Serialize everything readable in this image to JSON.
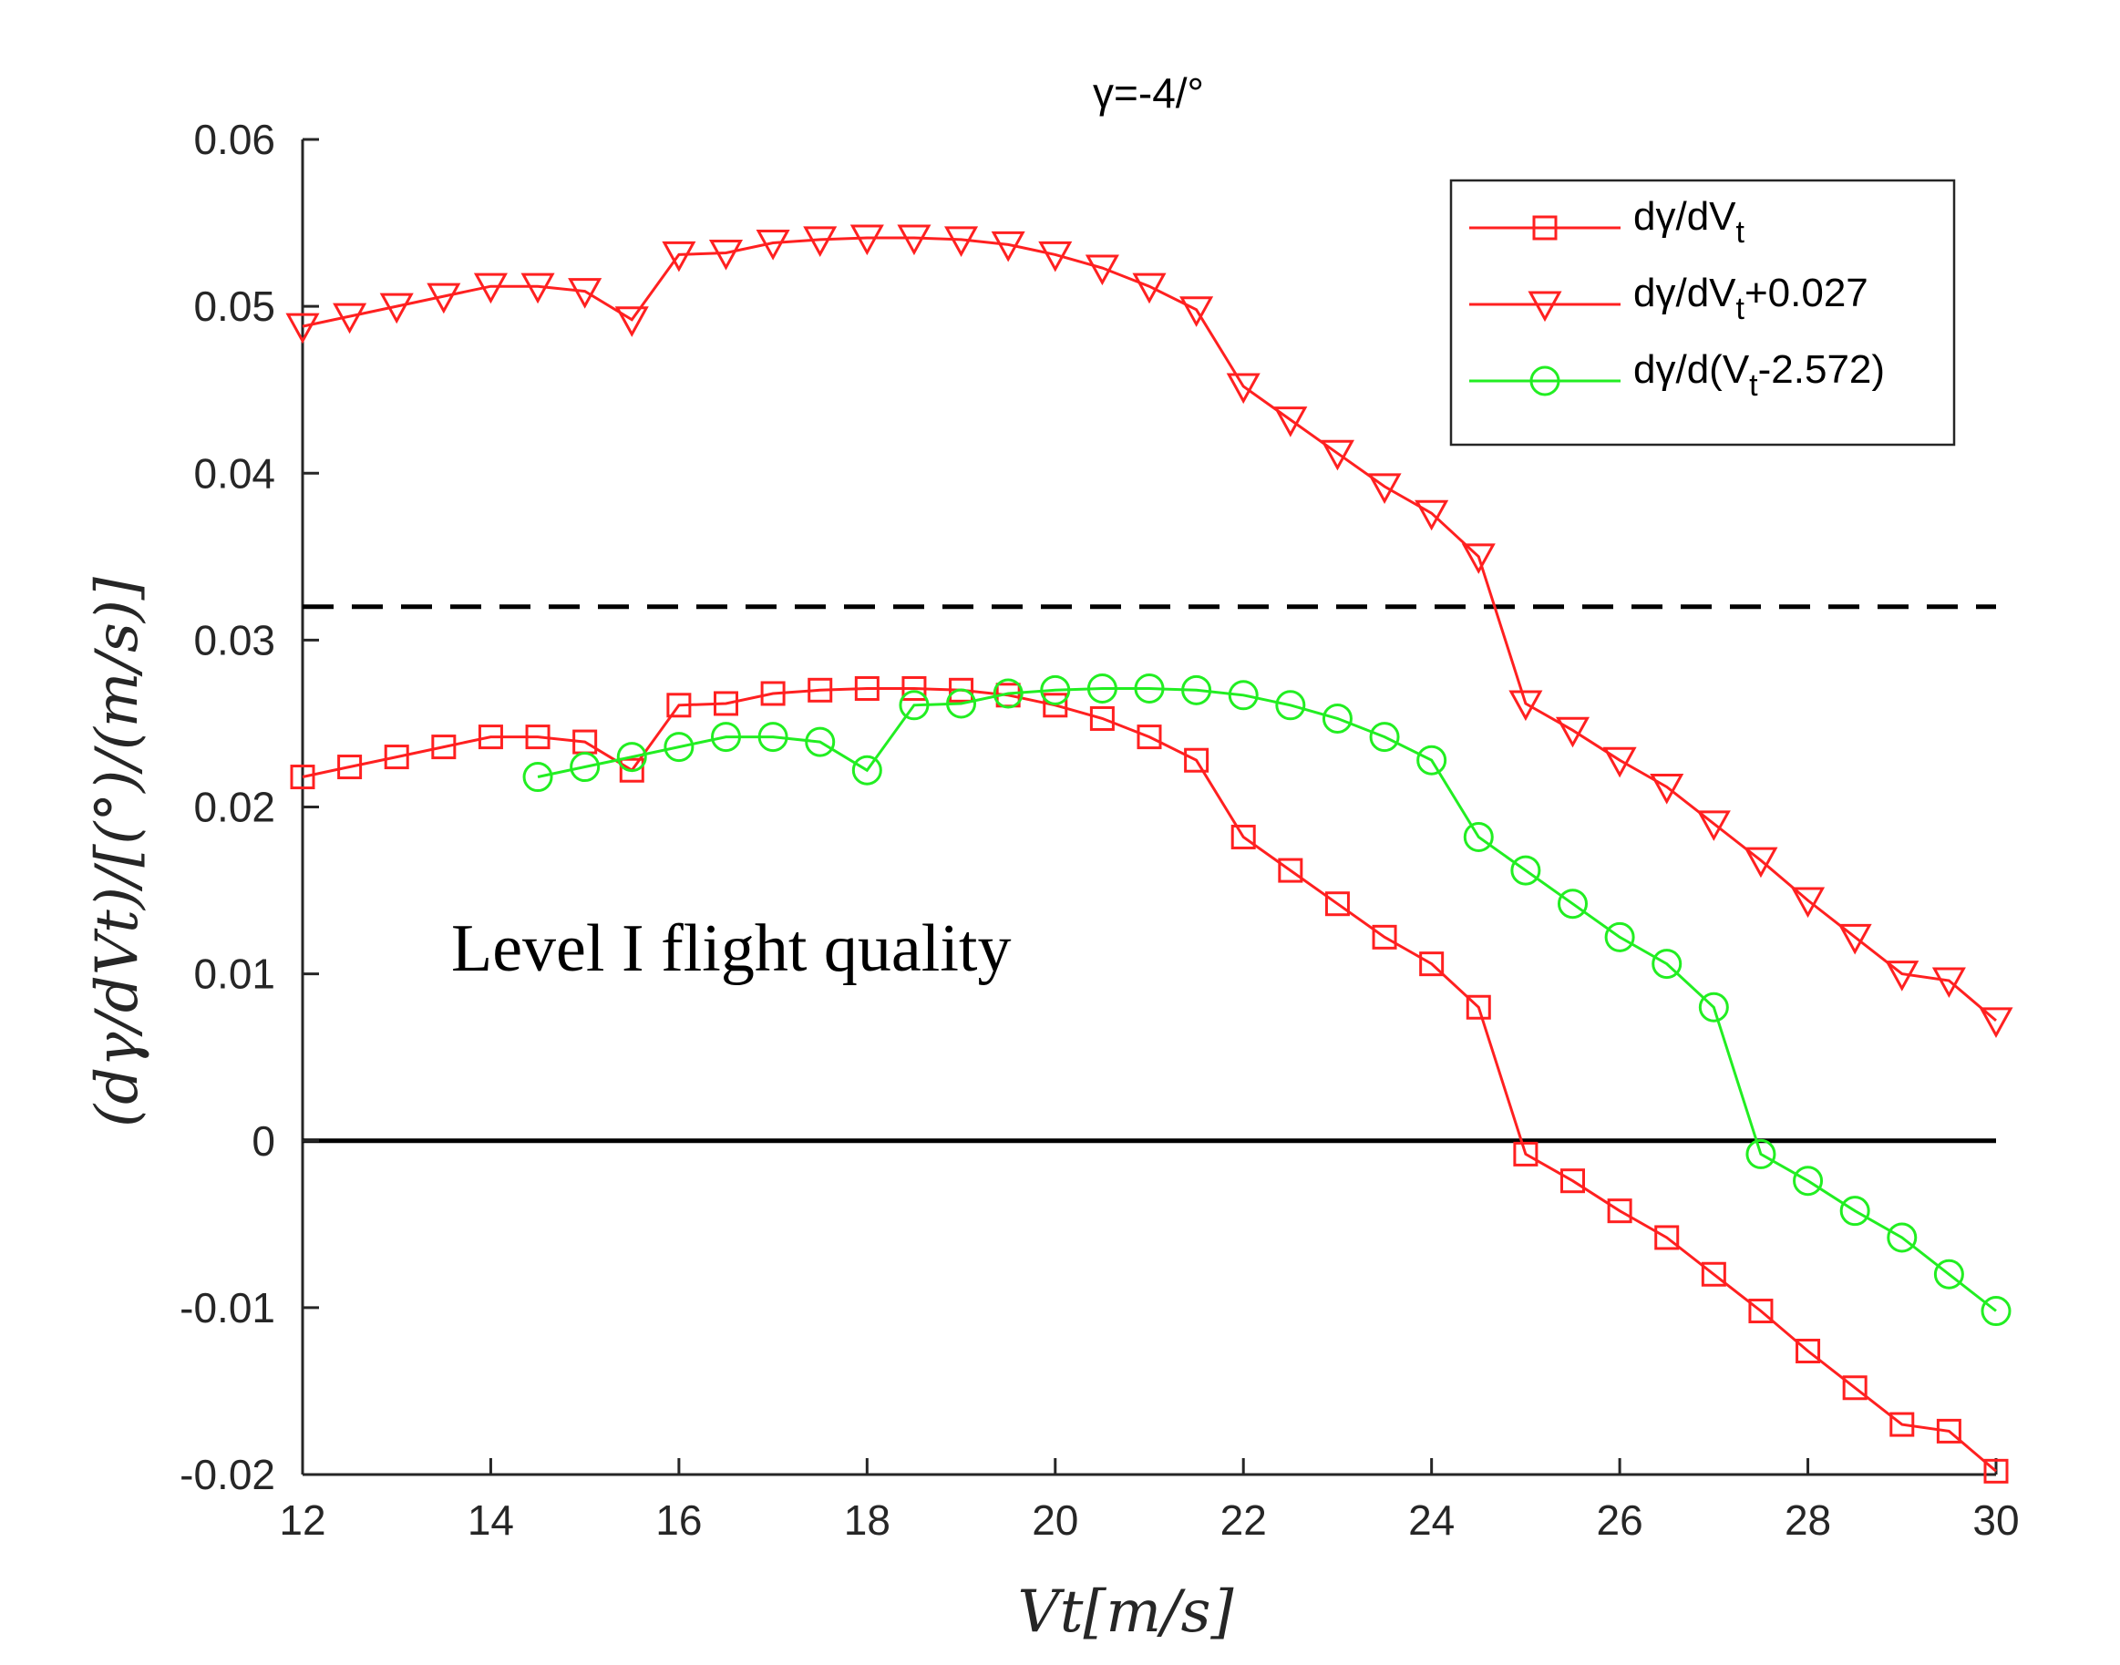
{
  "chart_data": {
    "type": "line",
    "title": "γ=-4/°",
    "xlabel": "Vt[m/s]",
    "ylabel": "(dγ/dVt)/[(°)/(m/s)]",
    "xlim": [
      12,
      30
    ],
    "ylim": [
      -0.02,
      0.06
    ],
    "xticks": [
      12,
      14,
      16,
      18,
      20,
      22,
      24,
      26,
      28,
      30
    ],
    "yticks": [
      -0.02,
      -0.01,
      0,
      0.01,
      0.02,
      0.03,
      0.04,
      0.05,
      0.06
    ],
    "ytick_labels": [
      "-0.02",
      "-0.01",
      "0",
      "0.01",
      "0.02",
      "0.03",
      "0.04",
      "0.05",
      "0.06"
    ],
    "grid": false,
    "legend_position": "top-right",
    "annotation": "Level I flight quality",
    "reference_lines": [
      {
        "name": "level-I-threshold",
        "y": 0.032,
        "style": "dashed",
        "color": "#000000"
      },
      {
        "name": "zero-line",
        "y": 0,
        "style": "solid",
        "color": "#000000"
      }
    ],
    "series": [
      {
        "name": "dγ/dVt",
        "legend_parts": {
          "base": "dγ/dV",
          "sub": "t",
          "suffix": ""
        },
        "color": "#ff2020",
        "marker": "square",
        "x": [
          12,
          12.5,
          13,
          13.5,
          14,
          14.5,
          15,
          15.5,
          16,
          16.5,
          17,
          17.5,
          18,
          18.5,
          19,
          19.5,
          20,
          20.5,
          21,
          21.5,
          22,
          22.5,
          23,
          23.5,
          24,
          24.5,
          25,
          25.5,
          26,
          26.5,
          27,
          27.5,
          28,
          28.5,
          29,
          29.5,
          30
        ],
        "y": [
          0.0218,
          0.0224,
          0.023,
          0.0236,
          0.0242,
          0.0242,
          0.0239,
          0.0222,
          0.0261,
          0.0262,
          0.0268,
          0.027,
          0.0271,
          0.0271,
          0.027,
          0.0267,
          0.0261,
          0.0253,
          0.0242,
          0.0228,
          0.0182,
          0.0162,
          0.0142,
          0.0122,
          0.0106,
          0.008,
          -0.0008,
          -0.0024,
          -0.0042,
          -0.0058,
          -0.008,
          -0.0102,
          -0.0126,
          -0.0148,
          -0.017,
          -0.0174,
          -0.0198
        ]
      },
      {
        "name": "dγ/dVt+0.027",
        "legend_parts": {
          "base": "dγ/dV",
          "sub": "t",
          "suffix": "+0.027"
        },
        "color": "#ff2020",
        "marker": "triangle-down",
        "x": [
          12,
          12.5,
          13,
          13.5,
          14,
          14.5,
          15,
          15.5,
          16,
          16.5,
          17,
          17.5,
          18,
          18.5,
          19,
          19.5,
          20,
          20.5,
          21,
          21.5,
          22,
          22.5,
          23,
          23.5,
          24,
          24.5,
          25,
          25.5,
          26,
          26.5,
          27,
          27.5,
          28,
          28.5,
          29,
          29.5,
          30
        ],
        "y": [
          0.0488,
          0.0494,
          0.05,
          0.0506,
          0.0512,
          0.0512,
          0.0509,
          0.0492,
          0.0531,
          0.0532,
          0.0538,
          0.054,
          0.0541,
          0.0541,
          0.054,
          0.0537,
          0.0531,
          0.0523,
          0.0512,
          0.0498,
          0.0452,
          0.0432,
          0.0412,
          0.0392,
          0.0376,
          0.035,
          0.0262,
          0.0246,
          0.0228,
          0.0212,
          0.019,
          0.0168,
          0.0144,
          0.0122,
          0.01,
          0.0096,
          0.0072
        ]
      },
      {
        "name": "dγ/d(Vt-2.572)",
        "legend_parts": {
          "base": "dγ/d(V",
          "sub": "t",
          "suffix": "-2.572)"
        },
        "color": "#22ee22",
        "marker": "circle",
        "x": [
          14.5,
          15,
          15.5,
          16,
          16.5,
          17,
          17.5,
          18,
          18.5,
          19,
          19.5,
          20,
          20.5,
          21,
          21.5,
          22,
          22.5,
          23,
          23.5,
          24,
          24.5,
          25,
          25.5,
          26,
          26.5,
          27,
          27.5,
          28,
          28.5,
          29,
          29.5,
          30
        ],
        "y": [
          0.0218,
          0.0224,
          0.023,
          0.0236,
          0.0242,
          0.0242,
          0.0239,
          0.0222,
          0.0261,
          0.0262,
          0.0268,
          0.027,
          0.0271,
          0.0271,
          0.027,
          0.0267,
          0.0261,
          0.0253,
          0.0242,
          0.0228,
          0.0182,
          0.0162,
          0.0142,
          0.0122,
          0.0106,
          0.008,
          -0.0008,
          -0.0024,
          -0.0042,
          -0.0058,
          -0.008,
          -0.0102
        ]
      }
    ]
  }
}
